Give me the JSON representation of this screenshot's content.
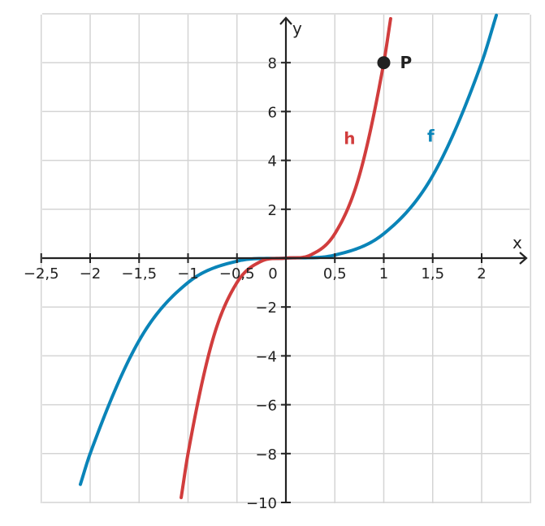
{
  "chart_data": {
    "type": "line",
    "title": "",
    "xlabel": "x",
    "ylabel": "y",
    "xlim": [
      -2.5,
      2.5
    ],
    "ylim": [
      -10,
      10
    ],
    "x_ticks": [
      -2.5,
      -2,
      -1.5,
      -1,
      -0.5,
      0,
      0.5,
      1,
      1.5,
      2
    ],
    "x_tick_labels": [
      "−2,5",
      "−2",
      "−1,5",
      "−1",
      "−0,5",
      "0",
      "0,5",
      "1",
      "1,5",
      "2"
    ],
    "y_ticks": [
      -10,
      -8,
      -6,
      -4,
      -2,
      2,
      4,
      6,
      8
    ],
    "y_tick_labels": [
      "−10",
      "−8",
      "−6",
      "−4",
      "−2",
      "2",
      "4",
      "6",
      "8"
    ],
    "grid": true,
    "series": [
      {
        "name": "f",
        "color": "#0a84b8",
        "formula": "y = x^3",
        "x": [
          -2.1,
          -2,
          -1.5,
          -1,
          -0.5,
          0,
          0.5,
          1,
          1.5,
          2,
          2.15
        ],
        "y": [
          -9.26,
          -8,
          -3.375,
          -1,
          -0.125,
          0,
          0.125,
          1,
          3.375,
          8,
          9.94
        ]
      },
      {
        "name": "h",
        "color": "#d13d3d",
        "formula": "y = 8x^3",
        "x": [
          -1.07,
          -1,
          -0.75,
          -0.5,
          -0.25,
          0,
          0.25,
          0.5,
          0.75,
          1,
          1.07
        ],
        "y": [
          -9.8,
          -8,
          -3.375,
          -1,
          -0.125,
          0,
          0.125,
          1,
          3.375,
          8,
          9.8
        ]
      }
    ],
    "points": [
      {
        "name": "P",
        "x": 1,
        "y": 8
      }
    ],
    "annotations": [
      {
        "text": "h",
        "x": 0.65,
        "y": 4.9,
        "color": "#d13d3d"
      },
      {
        "text": "f",
        "x": 1.48,
        "y": 5.0,
        "color": "#0a84b8"
      }
    ]
  }
}
